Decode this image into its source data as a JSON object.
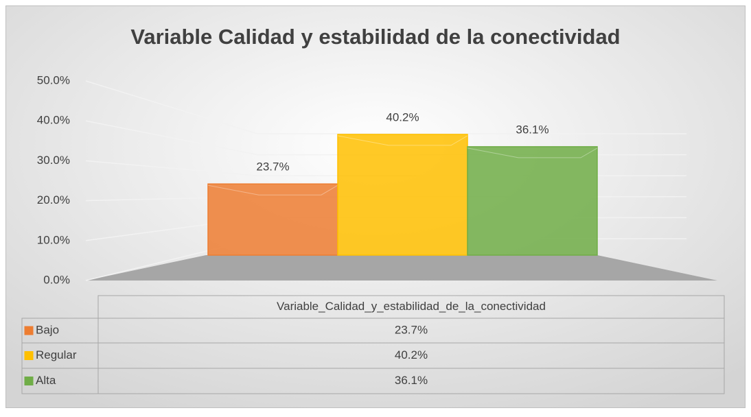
{
  "chart_data": {
    "type": "bar3d",
    "title": "Variable Calidad y estabilidad de la conectividad",
    "categories": [
      "Variable_Calidad_y_estabilidad_de_la_conectividad"
    ],
    "series": [
      {
        "name": "Bajo",
        "color": "#ed7d31",
        "values": [
          23.7
        ],
        "value_labels": [
          "23.7%"
        ]
      },
      {
        "name": "Regular",
        "color": "#ffc000",
        "values": [
          40.2
        ],
        "value_labels": [
          "40.2%"
        ]
      },
      {
        "name": "Alta",
        "color": "#70ad47",
        "values": [
          36.1
        ],
        "value_labels": [
          "36.1%"
        ]
      }
    ],
    "ylim": [
      0,
      50
    ],
    "yticks": [
      {
        "value": 0,
        "label": "0.0%"
      },
      {
        "value": 10,
        "label": "10.0%"
      },
      {
        "value": 20,
        "label": "20.0%"
      },
      {
        "value": 30,
        "label": "30.0%"
      },
      {
        "value": 40,
        "label": "40.0%"
      },
      {
        "value": 50,
        "label": "50.0%"
      }
    ],
    "grid": true
  }
}
